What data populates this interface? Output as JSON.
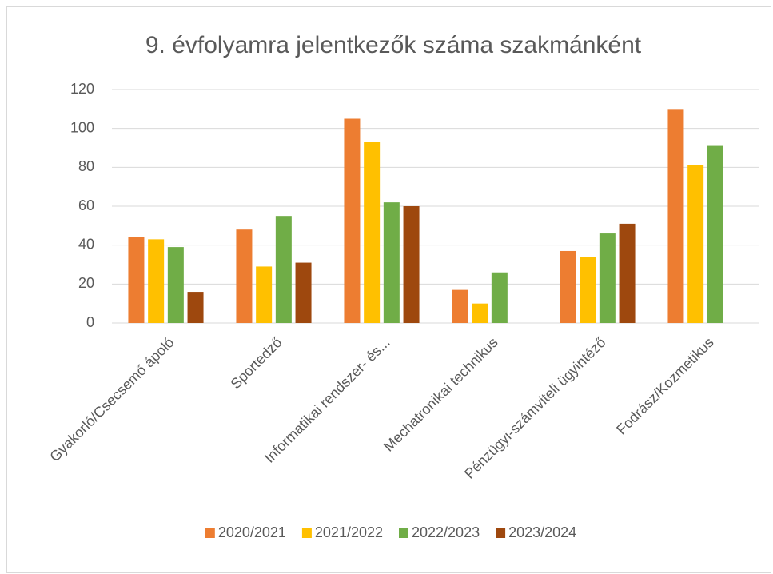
{
  "chart_data": {
    "type": "bar",
    "title": "9. évfolyamra jelentkezők száma szakmánként",
    "categories": [
      "Gyakorló/Csecsemő ápoló",
      "Sportedző",
      "Informatikai rendszer- és...",
      "Mechatronikai technikus",
      "Pénzügyi-számviteli ügyintéző",
      "Fodrász/Kozmetikus"
    ],
    "series": [
      {
        "name": "2020/2021",
        "color": "#ED7D31",
        "values": [
          44,
          48,
          105,
          17,
          37,
          110
        ]
      },
      {
        "name": "2021/2022",
        "color": "#FFC000",
        "values": [
          43,
          29,
          93,
          10,
          34,
          81
        ]
      },
      {
        "name": "2022/2023",
        "color": "#70AD47",
        "values": [
          39,
          55,
          62,
          26,
          46,
          91
        ]
      },
      {
        "name": "2023/2024",
        "color": "#9E480E",
        "values": [
          16,
          31,
          60,
          null,
          51,
          null
        ]
      }
    ],
    "ylim": [
      0,
      120
    ],
    "yticks": [
      0,
      20,
      40,
      60,
      80,
      100,
      120
    ],
    "grid": true,
    "legend": "bottom"
  }
}
